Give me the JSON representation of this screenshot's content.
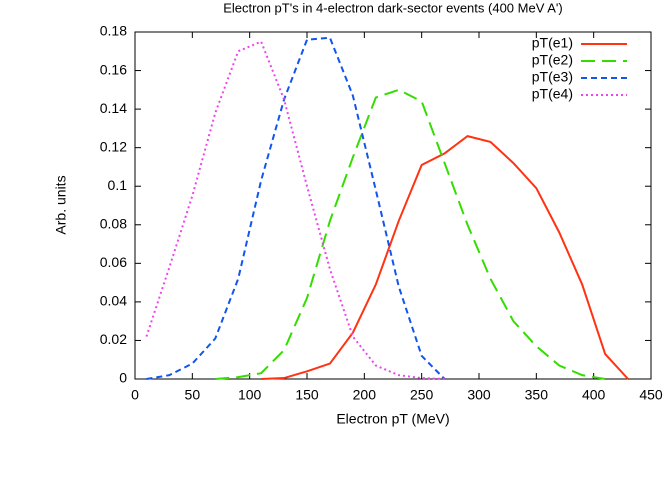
{
  "chart_data": {
    "type": "line",
    "title": "Electron pT's in 4-electron dark-sector events (400 MeV A')",
    "x_label": "Electron pT (MeV)",
    "y_label": "Arb. units",
    "x": [
      10,
      30,
      50,
      70,
      90,
      110,
      130,
      150,
      170,
      190,
      210,
      230,
      250,
      270,
      290,
      310,
      330,
      350,
      370,
      390,
      410,
      430
    ],
    "series": [
      {
        "name": "pT(e1)",
        "color": "#ff3311",
        "line_style": "solid",
        "values": [
          null,
          null,
          null,
          null,
          null,
          0,
          0.0005,
          0.004,
          0.008,
          0.024,
          0.049,
          0.082,
          0.111,
          0.117,
          0.126,
          0.123,
          0.112,
          0.099,
          0.076,
          0.049,
          0.013,
          0
        ]
      },
      {
        "name": "pT(e2)",
        "color": "#33dd00",
        "line_style": "long-dash",
        "values": [
          null,
          null,
          null,
          0,
          0.001,
          0.003,
          0.015,
          0.042,
          0.082,
          0.115,
          0.146,
          0.15,
          0.144,
          0.112,
          0.08,
          0.052,
          0.03,
          0.017,
          0.007,
          0.002,
          0,
          null
        ]
      },
      {
        "name": "pT(e3)",
        "color": "#1155ee",
        "line_style": "dashed",
        "values": [
          0,
          0.002,
          0.008,
          0.021,
          0.052,
          0.103,
          0.145,
          0.176,
          0.177,
          0.147,
          0.098,
          0.048,
          0.012,
          0,
          null,
          null,
          null,
          null,
          null,
          null,
          null,
          null
        ]
      },
      {
        "name": "pT(e4)",
        "color": "#ee44ee",
        "line_style": "dotted",
        "values": [
          0.022,
          0.058,
          0.095,
          0.138,
          0.17,
          0.175,
          0.145,
          0.1,
          0.057,
          0.022,
          0.007,
          0.002,
          0.0005,
          0,
          null,
          null,
          null,
          null,
          null,
          null,
          null,
          null
        ]
      }
    ],
    "xlim": [
      0,
      450
    ],
    "xticks": [
      0,
      50,
      100,
      150,
      200,
      250,
      300,
      350,
      400,
      450
    ],
    "ylim": [
      0,
      0.18
    ],
    "yticks": [
      0,
      0.02,
      0.04,
      0.06,
      0.08,
      0.1,
      0.12,
      0.14,
      0.16,
      0.18
    ],
    "legend": "top-right"
  }
}
